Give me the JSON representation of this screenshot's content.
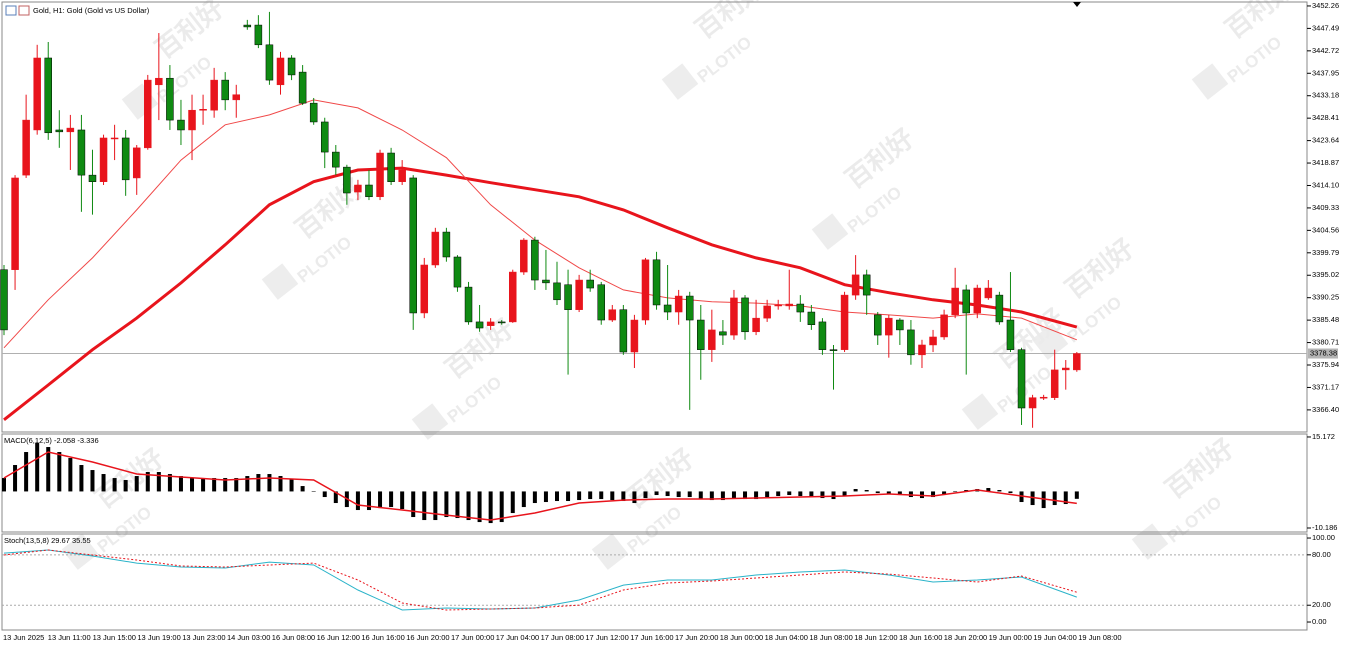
{
  "chart_data": {
    "type": "candlestick",
    "title": "Gold, H1: Gold (Gold vs US Dollar)",
    "up_color": "#e8141c",
    "down_color": "#0f8a12",
    "ylim": [
      3361.7,
      3453.1
    ],
    "yticks": [
      3452.26,
      3447.49,
      3442.72,
      3437.95,
      3433.18,
      3428.41,
      3423.64,
      3418.87,
      {
        "value": 3414.1,
        "label": "3414.10"
      },
      3409.33,
      3404.56,
      3399.79,
      3395.02,
      3390.25,
      3385.48,
      3380.71,
      3375.94,
      3371.17,
      {
        "value": 3366.4,
        "label": "3366.40"
      }
    ],
    "last_price": 3378.38,
    "open": [
      3396.2,
      3396.2,
      3416.3,
      3425.9,
      3441.2,
      3425.9,
      3425.5,
      3425.9,
      3416.3,
      3414.9,
      3424.2,
      3424.2,
      3415.7,
      3422.1,
      3435.5,
      3436.9,
      3428.0,
      3425.9,
      3430.1,
      3430.1,
      3436.5,
      3432.3,
      3448.2,
      3448.2,
      3444.0,
      3435.5,
      3441.2,
      3438.2,
      3431.6,
      3427.6,
      3421.2,
      3418.0,
      3412.7,
      3414.2,
      3411.7,
      3421.0,
      3414.9,
      3415.7,
      3387.0,
      3397.2,
      3404.2,
      3398.9,
      3392.5,
      3385.1,
      3384.3,
      3385.1,
      3385.1,
      3395.7,
      3402.5,
      3394.0,
      3393.4,
      3393.0,
      3387.7,
      3394.0,
      3393.0,
      3385.5,
      3387.7,
      3378.7,
      3385.5,
      3398.3,
      3388.7,
      3387.2,
      3390.6,
      3385.5,
      3379.2,
      3383.0,
      3382.3,
      3390.2,
      3383.0,
      3385.9,
      3388.5,
      3388.5,
      3388.9,
      3387.2,
      3385.1,
      3379.2,
      3379.2,
      3390.8,
      3395.1,
      3386.6,
      3382.3,
      3385.5,
      3383.4,
      3378.1,
      3380.2,
      3381.9,
      3386.6,
      3391.9,
      3387.0,
      3390.2,
      3390.8,
      3385.5,
      3379.2,
      3366.8,
      3369.0,
      3369.0,
      3374.9,
      3374.9
    ],
    "high": [
      3397.2,
      3416.3,
      3433.4,
      3444.0,
      3444.6,
      3430.1,
      3429.1,
      3429.1,
      3421.7,
      3424.9,
      3427.0,
      3425.9,
      3422.7,
      3437.6,
      3446.5,
      3439.7,
      3432.3,
      3433.4,
      3433.4,
      3439.1,
      3438.2,
      3435.5,
      3449.3,
      3450.3,
      3451.0,
      3442.5,
      3441.8,
      3439.7,
      3432.7,
      3428.5,
      3422.7,
      3418.5,
      3415.3,
      3417.4,
      3421.7,
      3422.1,
      3419.5,
      3416.3,
      3398.7,
      3405.1,
      3405.1,
      3399.3,
      3393.6,
      3388.7,
      3385.9,
      3385.5,
      3396.2,
      3402.9,
      3403.2,
      3400.4,
      3397.9,
      3396.2,
      3395.1,
      3396.2,
      3393.6,
      3388.7,
      3388.7,
      3386.6,
      3398.7,
      3400.0,
      3397.2,
      3391.9,
      3391.5,
      3388.7,
      3387.7,
      3385.5,
      3391.9,
      3390.8,
      3389.8,
      3389.8,
      3389.8,
      3396.2,
      3390.8,
      3388.7,
      3385.9,
      3380.2,
      3391.5,
      3399.3,
      3396.2,
      3387.2,
      3386.6,
      3385.9,
      3385.5,
      3381.3,
      3383.4,
      3387.7,
      3396.6,
      3393.0,
      3393.0,
      3394.0,
      3391.5,
      3395.7,
      3379.6,
      3369.6,
      3369.6,
      3379.2,
      3377.0,
      3378.7
    ],
    "low": [
      3382.3,
      3391.9,
      3415.7,
      3424.9,
      3423.8,
      3422.1,
      3417.4,
      3408.5,
      3407.9,
      3414.2,
      3419.5,
      3411.9,
      3412.1,
      3421.7,
      3428.0,
      3425.9,
      3422.7,
      3419.5,
      3427.0,
      3428.5,
      3430.1,
      3428.5,
      3447.2,
      3443.3,
      3435.5,
      3433.4,
      3436.5,
      3431.2,
      3427.0,
      3417.8,
      3416.3,
      3410.0,
      3411.0,
      3411.0,
      3411.0,
      3414.2,
      3414.2,
      3383.4,
      3385.9,
      3396.6,
      3397.9,
      3391.5,
      3384.5,
      3383.0,
      3383.4,
      3384.5,
      3384.9,
      3395.1,
      3391.9,
      3391.9,
      3388.7,
      3373.9,
      3387.2,
      3391.5,
      3384.5,
      3385.1,
      3378.1,
      3375.3,
      3384.5,
      3387.7,
      3385.5,
      3384.5,
      3366.4,
      3372.8,
      3376.6,
      3380.2,
      3381.3,
      3381.3,
      3382.3,
      3385.1,
      3387.7,
      3387.7,
      3385.1,
      3383.4,
      3378.1,
      3370.7,
      3378.7,
      3389.8,
      3386.6,
      3380.2,
      3377.5,
      3380.2,
      3376.0,
      3375.3,
      3378.7,
      3381.3,
      3385.9,
      3373.9,
      3385.9,
      3389.8,
      3384.5,
      3378.7,
      3363.2,
      3362.6,
      3368.5,
      3368.5,
      3370.7,
      3374.5
    ],
    "close": [
      3383.4,
      3415.7,
      3428.0,
      3441.2,
      3425.3,
      3425.5,
      3426.3,
      3416.3,
      3414.9,
      3424.2,
      3424.2,
      3415.3,
      3422.1,
      3436.5,
      3436.9,
      3428.0,
      3425.9,
      3430.1,
      3430.3,
      3436.5,
      3432.3,
      3433.4,
      3447.8,
      3444.0,
      3436.5,
      3441.2,
      3437.6,
      3431.6,
      3427.6,
      3421.2,
      3418.0,
      3412.5,
      3414.2,
      3411.7,
      3421.0,
      3414.9,
      3417.4,
      3387.0,
      3397.2,
      3404.2,
      3398.9,
      3392.5,
      3385.1,
      3383.8,
      3385.1,
      3385.0,
      3395.7,
      3402.5,
      3394.0,
      3393.4,
      3389.8,
      3387.7,
      3394.0,
      3392.3,
      3385.5,
      3387.7,
      3378.7,
      3385.5,
      3398.3,
      3388.7,
      3387.2,
      3390.6,
      3385.5,
      3379.2,
      3383.4,
      3382.3,
      3390.2,
      3383.0,
      3385.9,
      3388.5,
      3388.7,
      3388.9,
      3387.2,
      3384.5,
      3379.2,
      3379.1,
      3390.8,
      3395.1,
      3390.8,
      3382.3,
      3385.9,
      3383.4,
      3378.1,
      3380.2,
      3381.9,
      3386.6,
      3392.3,
      3387.0,
      3392.3,
      3392.3,
      3385.1,
      3379.2,
      3366.8,
      3369.0,
      3369.1,
      3374.9,
      3375.3,
      3378.38
    ],
    "moving_averages": [
      {
        "color": "#e8141c",
        "width": 3,
        "x": [
          0,
          4,
          8,
          12,
          16,
          20,
          24,
          28,
          32,
          36,
          40,
          44,
          48,
          52,
          56,
          60,
          64,
          68,
          72,
          76,
          80,
          84,
          88,
          92,
          97
        ],
        "values": [
          3364.3,
          3371.7,
          3379.2,
          3385.9,
          3393.4,
          3401.5,
          3410.0,
          3414.9,
          3417.4,
          3417.8,
          3416.3,
          3414.7,
          3413.2,
          3411.7,
          3408.9,
          3405.1,
          3401.5,
          3398.7,
          3396.6,
          3393.0,
          3391.3,
          3389.8,
          3388.7,
          3387.2,
          3384.0
        ]
      },
      {
        "color": "#f04848",
        "width": 1,
        "x": [
          0,
          4,
          8,
          12,
          16,
          20,
          24,
          28,
          32,
          36,
          40,
          44,
          48,
          52,
          56,
          60,
          64,
          68,
          72,
          76,
          80,
          84,
          88,
          92,
          97
        ],
        "values": [
          3379.6,
          3389.8,
          3398.7,
          3408.9,
          3419.5,
          3427.0,
          3429.1,
          3432.3,
          3430.6,
          3425.9,
          3420.0,
          3410.0,
          3402.5,
          3396.6,
          3391.9,
          3390.2,
          3389.4,
          3389.1,
          3388.5,
          3387.2,
          3386.6,
          3385.9,
          3386.8,
          3385.9,
          3381.3
        ]
      }
    ],
    "x_labels": [
      "13 Jun 2025",
      "13 Jun 11:00",
      "13 Jun 15:00",
      "13 Jun 19:00",
      "13 Jun 23:00",
      "14 Jun 03:00",
      "16 Jun 08:00",
      "16 Jun 12:00",
      "16 Jun 16:00",
      "16 Jun 20:00",
      "17 Jun 00:00",
      "17 Jun 04:00",
      "17 Jun 08:00",
      "17 Jun 12:00",
      "17 Jun 16:00",
      "17 Jun 20:00",
      "18 Jun 00:00",
      "18 Jun 04:00",
      "18 Jun 08:00",
      "18 Jun 12:00",
      "18 Jun 16:00",
      "18 Jun 20:00",
      "19 Jun 00:00",
      "19 Jun 04:00",
      "19 Jun 08:00"
    ],
    "indicators": [
      {
        "type": "histogram",
        "label": "MACD(6,12,5) -2.058 -3.336",
        "color": "#000000",
        "ylim": [
          -11.3,
          16.0
        ],
        "yticks": [
          15.172,
          -10.186
        ],
        "values": [
          3.73,
          7.36,
          10.98,
          13.49,
          12.37,
          10.98,
          9.31,
          7.36,
          5.96,
          4.85,
          3.73,
          3.18,
          4.29,
          5.41,
          5.41,
          4.85,
          4.29,
          3.73,
          3.73,
          3.73,
          3.73,
          3.73,
          4.29,
          4.85,
          4.85,
          4.29,
          3.45,
          1.5,
          0.11,
          -1.56,
          -3.23,
          -4.35,
          -5.18,
          -5.18,
          -4.63,
          -4.35,
          -4.91,
          -7.13,
          -7.97,
          -7.97,
          -7.13,
          -7.41,
          -7.97,
          -8.53,
          -8.81,
          -8.53,
          -6.02,
          -4.35,
          -3.23,
          -2.95,
          -2.67,
          -2.67,
          -2.4,
          -2.12,
          -2.12,
          -2.4,
          -2.67,
          -3.23,
          -1.84,
          -1.0,
          -1.28,
          -1.56,
          -1.56,
          -2.12,
          -2.4,
          -2.4,
          -1.84,
          -2.12,
          -2.12,
          -1.56,
          -1.28,
          -1.0,
          -1.28,
          -1.56,
          -1.84,
          -2.12,
          -1.28,
          0.67,
          0.39,
          -0.45,
          -0.72,
          -1.0,
          -1.56,
          -1.84,
          -1.56,
          -1.0,
          -0.17,
          0.39,
          0.67,
          0.95,
          0.39,
          -0.45,
          -2.95,
          -3.79,
          -4.63,
          -3.79,
          -3.51,
          -2.058
        ],
        "signal": {
          "color": "#e8141c",
          "x": [
            0,
            4,
            8,
            12,
            16,
            20,
            24,
            28,
            32,
            36,
            40,
            44,
            48,
            52,
            56,
            60,
            64,
            68,
            72,
            76,
            80,
            84,
            88,
            92,
            97
          ],
          "values": [
            3.73,
            10.98,
            8.19,
            4.85,
            4.01,
            3.18,
            3.73,
            3.18,
            -3.79,
            -5.18,
            -6.58,
            -7.97,
            -6.02,
            -3.23,
            -2.4,
            -2.12,
            -2.12,
            -1.84,
            -1.56,
            -1.28,
            -0.72,
            -1.28,
            0.39,
            -1.28,
            -3.336
          ]
        }
      },
      {
        "type": "line",
        "label": "Stoch(13,5,8) 29.67 35.55",
        "ylim": [
          -9.5,
          104.8
        ],
        "yticks": [
          {
            "value": 100,
            "label": "100.00"
          },
          {
            "value": 80,
            "label": "80.00"
          },
          {
            "value": 20,
            "label": "20.00"
          },
          {
            "value": 0,
            "label": "0.00"
          }
        ],
        "series": [
          {
            "color": "#2ab3c9",
            "dash": false,
            "x": [
              0,
              4,
              8,
              12,
              16,
              20,
              24,
              28,
              32,
              36,
              40,
              44,
              48,
              52,
              56,
              60,
              64,
              68,
              72,
              76,
              80,
              84,
              88,
              92,
              97
            ],
            "values": [
              82.1,
              85.7,
              78.6,
              70.2,
              65.5,
              64.3,
              71.4,
              67.9,
              38.1,
              14.3,
              16.7,
              15.5,
              16.7,
              26.2,
              44.0,
              50.0,
              50.0,
              56.0,
              59.5,
              61.9,
              56.0,
              47.6,
              50.0,
              53.6,
              29.67
            ]
          },
          {
            "color": "#e8141c",
            "dash": true,
            "x": [
              0,
              4,
              8,
              12,
              16,
              20,
              24,
              28,
              32,
              36,
              40,
              44,
              48,
              52,
              56,
              60,
              64,
              68,
              72,
              76,
              80,
              84,
              88,
              92,
              97
            ],
            "values": [
              79.8,
              85.7,
              79.8,
              73.8,
              66.7,
              65.5,
              67.9,
              70.2,
              50.0,
              22.6,
              14.3,
              15.5,
              16.7,
              20.2,
              38.1,
              46.4,
              48.8,
              52.4,
              56.0,
              59.5,
              57.1,
              52.4,
              47.6,
              54.8,
              35.55
            ]
          }
        ]
      }
    ],
    "watermark": {
      "brand_cn": "百利好",
      "brand_en": "PLOTIO"
    }
  }
}
